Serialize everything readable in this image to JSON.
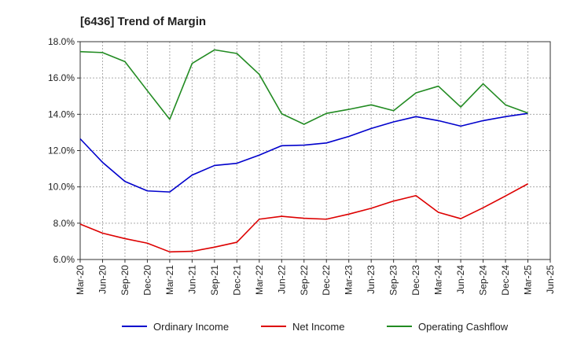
{
  "chart_data": {
    "type": "line",
    "title": "[6436]  Trend of Margin",
    "xlabel": "",
    "ylabel": "",
    "ylim": [
      6.0,
      18.0
    ],
    "yticks": [
      6.0,
      8.0,
      10.0,
      12.0,
      14.0,
      16.0,
      18.0
    ],
    "ytick_labels": [
      "6.0%",
      "8.0%",
      "10.0%",
      "12.0%",
      "14.0%",
      "16.0%",
      "18.0%"
    ],
    "x_tick_labels": [
      "Mar-20",
      "Jun-20",
      "Sep-20",
      "Dec-20",
      "Mar-21",
      "Jun-21",
      "Sep-21",
      "Dec-21",
      "Mar-22",
      "Jun-22",
      "Sep-22",
      "Dec-22",
      "Mar-23",
      "Jun-23",
      "Sep-23",
      "Dec-23",
      "Mar-24",
      "Jun-24",
      "Sep-24",
      "Dec-24",
      "Mar-25",
      "Jun-25"
    ],
    "categories": [
      "Mar-20",
      "Jun-20",
      "Sep-20",
      "Dec-20",
      "Mar-21",
      "Jun-21",
      "Sep-21",
      "Dec-21",
      "Mar-22",
      "Jun-22",
      "Sep-22",
      "Dec-22",
      "Mar-23",
      "Jun-23",
      "Sep-23",
      "Dec-23",
      "Mar-24",
      "Jun-24",
      "Sep-24",
      "Dec-24",
      "Mar-25"
    ],
    "grid": true,
    "legend_position": "bottom",
    "series": [
      {
        "name": "Ordinary Income",
        "color": "#0000cc",
        "values": [
          12.65,
          11.35,
          10.3,
          9.78,
          9.72,
          10.65,
          11.18,
          11.3,
          11.75,
          12.27,
          12.3,
          12.42,
          12.78,
          13.22,
          13.58,
          13.87,
          13.65,
          13.35,
          13.65,
          13.87,
          14.05
        ]
      },
      {
        "name": "Net Income",
        "color": "#dd0000",
        "values": [
          7.95,
          7.45,
          7.15,
          6.9,
          6.42,
          6.45,
          6.68,
          6.95,
          8.22,
          8.38,
          8.27,
          8.22,
          8.5,
          8.82,
          9.22,
          9.52,
          8.6,
          8.25,
          8.85,
          9.5,
          10.17
        ]
      },
      {
        "name": "Operating Cashflow",
        "color": "#228b22",
        "values": [
          17.45,
          17.4,
          16.9,
          15.3,
          13.72,
          16.8,
          17.55,
          17.35,
          16.2,
          14.03,
          13.45,
          14.05,
          14.27,
          14.52,
          14.2,
          15.18,
          15.55,
          14.4,
          15.68,
          14.52,
          14.07
        ]
      }
    ]
  }
}
